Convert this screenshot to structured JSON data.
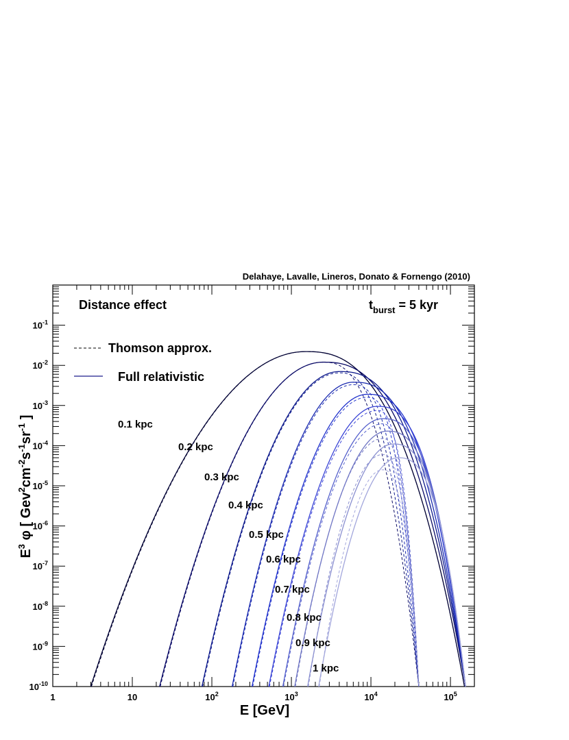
{
  "credit": "Delahaye, Lavalle, Lineros, Donato & Fornengo (2010)",
  "chart_data": {
    "type": "line",
    "x_scale": "log",
    "y_scale": "log",
    "xlim": [
      1,
      200000
    ],
    "ylim": [
      1e-10,
      1
    ],
    "x_ticks": [
      {
        "value": 1,
        "base": "1",
        "exp": ""
      },
      {
        "value": 10,
        "base": "10",
        "exp": ""
      },
      {
        "value": 100,
        "base": "10",
        "exp": "2"
      },
      {
        "value": 1000,
        "base": "10",
        "exp": "3"
      },
      {
        "value": 10000,
        "base": "10",
        "exp": "4"
      },
      {
        "value": 100000,
        "base": "10",
        "exp": "5"
      }
    ],
    "y_ticks": [
      {
        "value": 1e-10,
        "base": "10",
        "exp": "-10"
      },
      {
        "value": 1e-09,
        "base": "10",
        "exp": "-9"
      },
      {
        "value": 1e-08,
        "base": "10",
        "exp": "-8"
      },
      {
        "value": 1e-07,
        "base": "10",
        "exp": "-7"
      },
      {
        "value": 1e-06,
        "base": "10",
        "exp": "-6"
      },
      {
        "value": 1e-05,
        "base": "10",
        "exp": "-5"
      },
      {
        "value": 0.0001,
        "base": "10",
        "exp": "-4"
      },
      {
        "value": 0.001,
        "base": "10",
        "exp": "-3"
      },
      {
        "value": 0.01,
        "base": "10",
        "exp": "-2"
      },
      {
        "value": 0.1,
        "base": "10",
        "exp": "-1"
      }
    ],
    "xlabel": "E [GeV]",
    "ylabel": {
      "p1": "E",
      "sup1": "3",
      "p2": " φ  [ Gev",
      "sup2": "2",
      "p3": "cm",
      "sup3": "-2",
      "p4": "s",
      "sup4": "-1",
      "p5": "sr",
      "sup5": "-1",
      "p6": " ]"
    },
    "annotation_left": "Distance effect",
    "annotation_right": {
      "t": "t",
      "sub": "burst",
      "rest": " = 5 kyr"
    },
    "legend": [
      {
        "label": "Thomson approx.",
        "style": "dashed",
        "color": "#000000"
      },
      {
        "label": "Full relativistic",
        "style": "solid",
        "color": "#1a1a8c"
      }
    ],
    "legend_placement": "top-left",
    "series": [
      {
        "label": "0.1 kpc",
        "color": "#000033",
        "x_low": 3.0,
        "x_peak": 1500,
        "y_peak": 0.022,
        "x_cut_full": 150000,
        "x_cut_thomson": 150000,
        "thomson_peak": 0.022
      },
      {
        "label": "0.2 kpc",
        "color": "#0a0a66",
        "x_low": 22,
        "x_peak": 2500,
        "y_peak": 0.012,
        "x_cut_full": 155000,
        "x_cut_thomson": 40000,
        "thomson_peak": 0.012
      },
      {
        "label": "0.3 kpc",
        "color": "#0e1a8c",
        "x_low": 75,
        "x_peak": 4000,
        "y_peak": 0.007,
        "x_cut_full": 155000,
        "x_cut_thomson": 40000,
        "thomson_peak": 0.0065
      },
      {
        "label": "0.4 kpc",
        "color": "#1a2ab0",
        "x_low": 180,
        "x_peak": 6000,
        "y_peak": 0.0038,
        "x_cut_full": 155000,
        "x_cut_thomson": 40000,
        "thomson_peak": 0.0033
      },
      {
        "label": "0.5 kpc",
        "color": "#2233cc",
        "x_low": 320,
        "x_peak": 9000,
        "y_peak": 0.0019,
        "x_cut_full": 155000,
        "x_cut_thomson": 40000,
        "thomson_peak": 0.0016
      },
      {
        "label": "0.6 kpc",
        "color": "#3a44d6",
        "x_low": 520,
        "x_peak": 12000,
        "y_peak": 0.00095,
        "x_cut_full": 155000,
        "x_cut_thomson": 40000,
        "thomson_peak": 0.00075
      },
      {
        "label": "0.7 kpc",
        "color": "#5560cc",
        "x_low": 780,
        "x_peak": 14000,
        "y_peak": 0.00047,
        "x_cut_full": 155000,
        "x_cut_thomson": 40000,
        "thomson_peak": 0.00035
      },
      {
        "label": "0.8 kpc",
        "color": "#7076c4",
        "x_low": 1100,
        "x_peak": 16000,
        "y_peak": 0.00023,
        "x_cut_full": 155000,
        "x_cut_thomson": 40000,
        "thomson_peak": 0.00015
      },
      {
        "label": "0.9 kpc",
        "color": "#8a8fd0",
        "x_low": 1600,
        "x_peak": 19000,
        "y_peak": 0.00011,
        "x_cut_full": 155000,
        "x_cut_thomson": 40000,
        "thomson_peak": 6e-05
      },
      {
        "label": "1 kpc",
        "color": "#a2a6dc",
        "x_low": 2200,
        "x_peak": 22000,
        "y_peak": 5e-05,
        "x_cut_full": 155000,
        "x_cut_thomson": 40000,
        "thomson_peak": 2.5e-05
      }
    ],
    "grid": false
  }
}
